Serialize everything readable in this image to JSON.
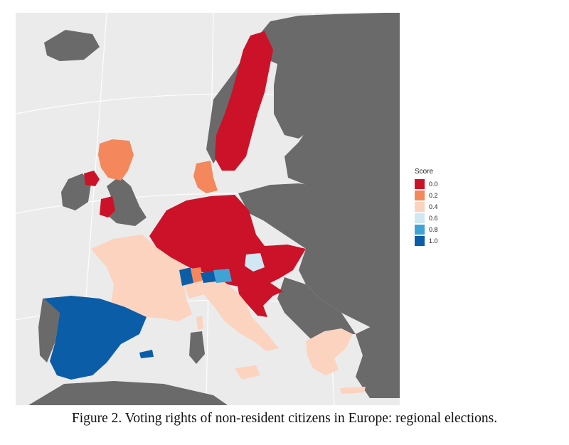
{
  "caption": "Figure 2. Voting rights of non-resident citizens in Europe: regional elections.",
  "legend": {
    "title": "Score",
    "items": [
      {
        "label": "0.0",
        "color": "#cb1228"
      },
      {
        "label": "0.2",
        "color": "#f4875b"
      },
      {
        "label": "0.4",
        "color": "#fbd3bf"
      },
      {
        "label": "0.6",
        "color": "#d1e7f3"
      },
      {
        "label": "0.8",
        "color": "#40a3d6"
      },
      {
        "label": "1.0",
        "color": "#0c5da8"
      }
    ]
  },
  "colors": {
    "sea": "#ebebeb",
    "land_no_data": "#6a6a6a",
    "graticule": "#ffffff"
  },
  "regions": [
    {
      "name": "Sweden",
      "score": "0.0"
    },
    {
      "name": "Scotland",
      "score": "0.2"
    },
    {
      "name": "Northern Ireland",
      "score": "0.0"
    },
    {
      "name": "Wales",
      "score": "0.0"
    },
    {
      "name": "Denmark",
      "score": "0.2"
    },
    {
      "name": "Germany",
      "score": "0.0"
    },
    {
      "name": "Belgium",
      "score": "0.0"
    },
    {
      "name": "Czech Republic",
      "score": "0.0"
    },
    {
      "name": "Austria",
      "score": "0.0"
    },
    {
      "name": "Vienna",
      "score": "0.6"
    },
    {
      "name": "Slovakia",
      "score": "0.0"
    },
    {
      "name": "Slovenia",
      "score": "0.0"
    },
    {
      "name": "Croatia",
      "score": "0.0"
    },
    {
      "name": "France",
      "score": "0.4"
    },
    {
      "name": "Italy",
      "score": "0.4"
    },
    {
      "name": "Greece",
      "score": "0.4"
    },
    {
      "name": "Switzerland (mixed cantons)",
      "score": "1.0"
    },
    {
      "name": "Spain",
      "score": "1.0"
    }
  ]
}
